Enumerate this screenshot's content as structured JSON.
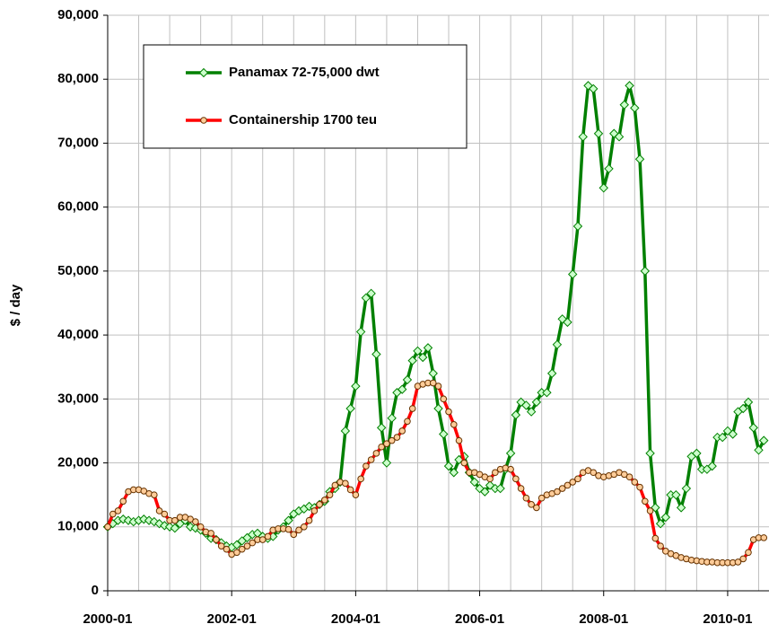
{
  "chart_data": {
    "type": "line",
    "y_label": "$ / day",
    "x": [
      "2000-01",
      "2000-02",
      "2000-03",
      "2000-04",
      "2000-05",
      "2000-06",
      "2000-07",
      "2000-08",
      "2000-09",
      "2000-10",
      "2000-11",
      "2000-12",
      "2001-01",
      "2001-02",
      "2001-03",
      "2001-04",
      "2001-05",
      "2001-06",
      "2001-07",
      "2001-08",
      "2001-09",
      "2001-10",
      "2001-11",
      "2001-12",
      "2002-01",
      "2002-02",
      "2002-03",
      "2002-04",
      "2002-05",
      "2002-06",
      "2002-07",
      "2002-08",
      "2002-09",
      "2002-10",
      "2002-11",
      "2002-12",
      "2003-01",
      "2003-02",
      "2003-03",
      "2003-04",
      "2003-05",
      "2003-06",
      "2003-07",
      "2003-08",
      "2003-09",
      "2003-10",
      "2003-11",
      "2003-12",
      "2004-01",
      "2004-02",
      "2004-03",
      "2004-04",
      "2004-05",
      "2004-06",
      "2004-07",
      "2004-08",
      "2004-09",
      "2004-10",
      "2004-11",
      "2004-12",
      "2005-01",
      "2005-02",
      "2005-03",
      "2005-04",
      "2005-05",
      "2005-06",
      "2005-07",
      "2005-08",
      "2005-09",
      "2005-10",
      "2005-11",
      "2005-12",
      "2006-01",
      "2006-02",
      "2006-03",
      "2006-04",
      "2006-05",
      "2006-06",
      "2006-07",
      "2006-08",
      "2006-09",
      "2006-10",
      "2006-11",
      "2006-12",
      "2007-01",
      "2007-02",
      "2007-03",
      "2007-04",
      "2007-05",
      "2007-06",
      "2007-07",
      "2007-08",
      "2007-09",
      "2007-10",
      "2007-11",
      "2007-12",
      "2008-01",
      "2008-02",
      "2008-03",
      "2008-04",
      "2008-05",
      "2008-06",
      "2008-07",
      "2008-08",
      "2008-09",
      "2008-10",
      "2008-11",
      "2008-12",
      "2009-01",
      "2009-02",
      "2009-03",
      "2009-04",
      "2009-05",
      "2009-06",
      "2009-07",
      "2009-08",
      "2009-09",
      "2009-10",
      "2009-11",
      "2009-12",
      "2010-01",
      "2010-02",
      "2010-03",
      "2010-04",
      "2010-05",
      "2010-06",
      "2010-07",
      "2010-08"
    ],
    "series": [
      {
        "name": "Panamax 72-75,000 dwt",
        "color": "#008000",
        "marker": "diamond",
        "marker_fill": "#ccffcc",
        "marker_stroke": "#008000",
        "values": [
          10000,
          10500,
          11000,
          11200,
          11000,
          10800,
          11000,
          11200,
          11000,
          10800,
          10500,
          10200,
          10000,
          9800,
          10500,
          11000,
          10000,
          9800,
          9500,
          9000,
          8200,
          8000,
          7500,
          7000,
          6800,
          7200,
          7800,
          8300,
          8800,
          9000,
          8500,
          8200,
          8500,
          9500,
          10000,
          11000,
          12000,
          12500,
          12800,
          13200,
          13000,
          13500,
          14000,
          15500,
          16000,
          17000,
          25000,
          28500,
          32000,
          40500,
          45800,
          46500,
          37000,
          25500,
          20000,
          27000,
          31000,
          31500,
          33000,
          36000,
          37500,
          36500,
          38000,
          34000,
          28500,
          24500,
          19500,
          18500,
          20500,
          21000,
          18500,
          17000,
          16000,
          15500,
          16500,
          16000,
          16000,
          19000,
          21500,
          27500,
          29500,
          29000,
          28000,
          29500,
          31000,
          31000,
          34000,
          38500,
          42500,
          42000,
          49500,
          57000,
          71000,
          79000,
          78500,
          71500,
          63000,
          66000,
          71500,
          71000,
          76000,
          79000,
          75500,
          67500,
          50000,
          21500,
          13000,
          10500,
          11500,
          15000,
          15000,
          13000,
          16000,
          21000,
          21500,
          19000,
          19000,
          19500,
          24000,
          24000,
          25000,
          24500,
          28000,
          28500,
          29500,
          25500,
          22000,
          23500
        ]
      },
      {
        "name": "Containership 1700 teu",
        "color": "#ff0000",
        "marker": "circle",
        "marker_fill": "#ffcc99",
        "marker_stroke": "#663300",
        "values": [
          10000,
          12000,
          12500,
          14000,
          15500,
          15800,
          15800,
          15600,
          15200,
          15000,
          12500,
          12000,
          11000,
          11000,
          11500,
          11500,
          11200,
          10800,
          10000,
          9200,
          9000,
          8000,
          7000,
          6500,
          5700,
          6000,
          6500,
          7000,
          7500,
          8000,
          8000,
          8500,
          9500,
          9700,
          9700,
          9600,
          8800,
          9500,
          10000,
          11000,
          12500,
          13500,
          14200,
          15000,
          16500,
          17000,
          16800,
          15800,
          15000,
          17500,
          19500,
          20500,
          21500,
          22500,
          23000,
          23500,
          24000,
          25000,
          26500,
          28500,
          32000,
          32300,
          32500,
          32500,
          32000,
          30000,
          28000,
          26000,
          23500,
          20000,
          18500,
          18500,
          18200,
          17800,
          17500,
          18500,
          19000,
          19200,
          19000,
          17500,
          16000,
          14500,
          13500,
          13000,
          14500,
          15000,
          15200,
          15500,
          16000,
          16500,
          17000,
          17500,
          18500,
          18800,
          18500,
          18000,
          17800,
          18000,
          18200,
          18500,
          18200,
          17800,
          17000,
          16200,
          14000,
          12500,
          8200,
          7000,
          6200,
          5800,
          5500,
          5200,
          5000,
          4800,
          4700,
          4600,
          4500,
          4500,
          4400,
          4400,
          4400,
          4400,
          4500,
          5000,
          6000,
          8000,
          8300,
          8300
        ]
      }
    ],
    "xticks": [
      "2000-01",
      "2002-01",
      "2004-01",
      "2006-01",
      "2008-01",
      "2010-01"
    ],
    "ylim": [
      0,
      90000
    ],
    "yticks": [
      0,
      {
        "value": 10000,
        "label": "10,000"
      },
      {
        "value": 20000,
        "label": "20,000"
      },
      {
        "value": 30000,
        "label": "30,000"
      },
      {
        "value": 40000,
        "label": "40,000"
      },
      {
        "value": 50000,
        "label": "50,000"
      },
      {
        "value": 60000,
        "label": "60,000"
      },
      {
        "value": 70000,
        "label": "70,000"
      },
      {
        "value": 80000,
        "label": "80,000"
      },
      {
        "value": 90000,
        "label": "90,000"
      }
    ],
    "grid": true,
    "legend": "upper-left"
  }
}
